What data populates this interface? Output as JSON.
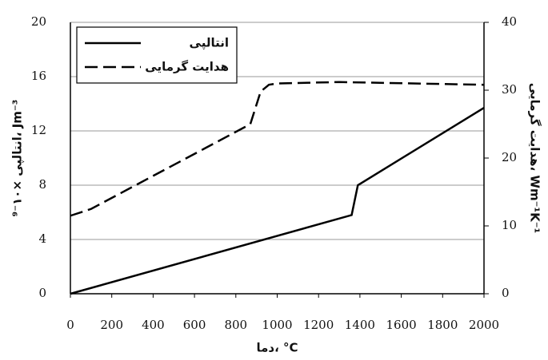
{
  "chart_data": {
    "type": "line",
    "x_label": "دما، °C",
    "y_label": "انتالپی ×۱۰⁻⁹، Jm⁻³",
    "y2_label": "هدایت گرمایی، Wm⁻¹K⁻¹",
    "xlim": [
      0,
      2000
    ],
    "xticks": [
      0,
      200,
      400,
      600,
      800,
      1000,
      1200,
      1400,
      1600,
      1800,
      2000
    ],
    "ylim": [
      0,
      20
    ],
    "yticks": [
      0,
      4,
      8,
      12,
      16,
      20
    ],
    "y2lim": [
      0,
      40
    ],
    "y2ticks": [
      0,
      10,
      20,
      30,
      40
    ],
    "grid": true,
    "legend": "upper-left",
    "series": [
      {
        "name": "انتالپی",
        "color": "#000000",
        "dash": "solid",
        "x": [
          0,
          1360,
          1390,
          2000
        ],
        "values": [
          0,
          5.8,
          8,
          13.7
        ]
      },
      {
        "name": "هدایت گرمایی",
        "color": "#000000",
        "dash": "dashed",
        "axis": "y2",
        "x": [
          0,
          100,
          870,
          920,
          960,
          1000,
          1300,
          2000
        ],
        "values": [
          11.5,
          12.5,
          25,
          29.8,
          30.8,
          31,
          31.2,
          30.8
        ]
      }
    ]
  }
}
